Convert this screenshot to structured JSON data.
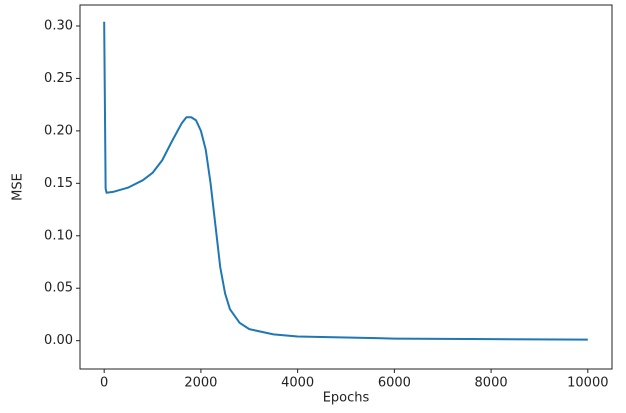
{
  "chart_data": {
    "type": "line",
    "x_label": "Epochs",
    "y_label": "MSE",
    "color": "#1f77b4",
    "x": [
      0,
      10,
      30,
      50,
      200,
      500,
      800,
      1000,
      1200,
      1400,
      1600,
      1700,
      1800,
      1900,
      2000,
      2100,
      2200,
      2300,
      2400,
      2500,
      2600,
      2800,
      3000,
      3500,
      4000,
      5000,
      6000,
      8000,
      10000
    ],
    "values": [
      0.304,
      0.25,
      0.145,
      0.141,
      0.142,
      0.146,
      0.153,
      0.16,
      0.172,
      0.19,
      0.207,
      0.213,
      0.213,
      0.21,
      0.2,
      0.182,
      0.15,
      0.11,
      0.07,
      0.045,
      0.03,
      0.017,
      0.011,
      0.006,
      0.004,
      0.003,
      0.002,
      0.0015,
      0.001
    ],
    "xlim": [
      -500,
      10500
    ],
    "ylim": [
      -0.027,
      0.32
    ],
    "xticks": [
      0,
      2000,
      4000,
      6000,
      8000,
      10000
    ],
    "yticks": [
      {
        "value": 0,
        "label": "0.00"
      },
      0.05,
      {
        "value": 0.1,
        "label": "0.10"
      },
      0.15,
      {
        "value": 0.2,
        "label": "0.20"
      },
      0.25,
      {
        "value": 0.3,
        "label": "0.30"
      }
    ]
  }
}
